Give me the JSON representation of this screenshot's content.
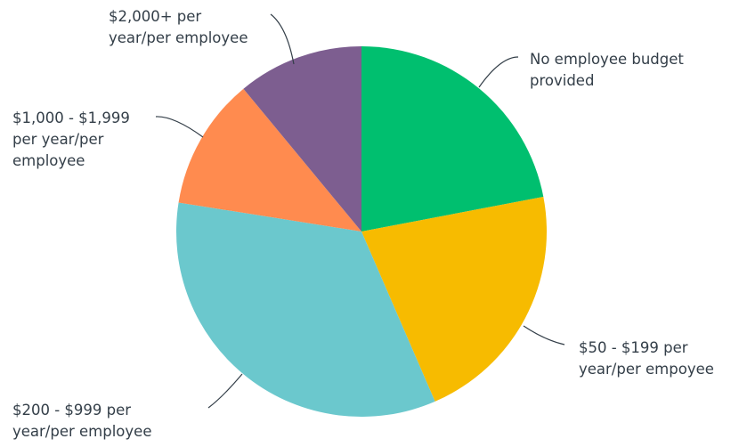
{
  "chart_data": {
    "type": "pie",
    "slices": [
      {
        "label": "No employee budget provided",
        "lines": [
          "No employee budget",
          "provided"
        ],
        "value": 22,
        "color": "#00bf6f"
      },
      {
        "label": "$50 - $199 per year/per empoyee",
        "lines": [
          "$50 - $199 per",
          "year/per empoyee"
        ],
        "value": 21.5,
        "color": "#f7bb00"
      },
      {
        "label": "$200 - $999 per year/per employee",
        "lines": [
          "$200 - $999 per",
          "year/per employee"
        ],
        "value": 34,
        "color": "#6bc8cd"
      },
      {
        "label": "$1,000 - $1,999 per year/per employee",
        "lines": [
          "$1,000 - $1,999",
          "per year/per",
          "employee"
        ],
        "value": 11.5,
        "color": "#ff8b4f"
      },
      {
        "label": "$2,000+ per year/per employee",
        "lines": [
          "$2,000+ per",
          "year/per employee"
        ],
        "value": 11,
        "color": "#7d5e90"
      }
    ],
    "start_angle_deg": 0,
    "direction": "clockwise",
    "legend": "none",
    "data_labels": "outside-with-leader-lines"
  }
}
